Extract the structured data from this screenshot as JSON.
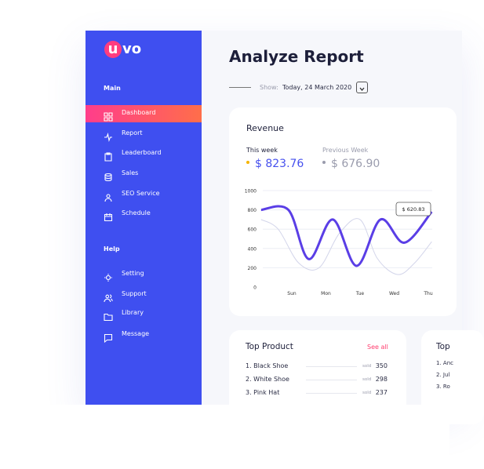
{
  "sidebar": {
    "logo_mark": "u",
    "logo_text": "vo",
    "sections": [
      {
        "title": "Main",
        "items": [
          {
            "label": "Dashboard",
            "active": true
          },
          {
            "label": "Report"
          },
          {
            "label": "Leaderboard"
          },
          {
            "label": "Sales"
          },
          {
            "label": "SEO Service"
          },
          {
            "label": "Schedule"
          }
        ]
      },
      {
        "title": "Help",
        "items": [
          {
            "label": "Setting"
          },
          {
            "label": "Support"
          },
          {
            "label": "Library"
          },
          {
            "label": "Message"
          }
        ]
      }
    ]
  },
  "header": {
    "title": "Analyze Report",
    "show_label": "Show:",
    "date": "Today, 24 March 2020"
  },
  "chart_data": {
    "type": "line",
    "title": "Revenue",
    "xlim": [
      0.1,
      5.1
    ],
    "xticks": [
      {
        "value": 1,
        "label": "Sun"
      },
      {
        "value": 2,
        "label": "Mon"
      },
      {
        "value": 3,
        "label": "Tue"
      },
      {
        "value": 4,
        "label": "Wed"
      },
      {
        "value": 5,
        "label": "Thu"
      }
    ],
    "ylim": [
      0,
      1000
    ],
    "yticks": [
      0,
      200,
      400,
      600,
      800,
      1000
    ],
    "grid": true,
    "series": [
      {
        "name": "Previous Week",
        "total": "$ 676.90",
        "color": "#d3d5ea",
        "dot_color": "#9a9cad",
        "x": [
          0.1,
          0.6,
          1.2,
          1.8,
          2.4,
          3.0,
          3.5,
          4.1,
          4.6,
          5.1
        ],
        "values": [
          700,
          600,
          250,
          200,
          560,
          700,
          300,
          130,
          250,
          470
        ]
      },
      {
        "name": "This week",
        "total": "$ 823.76",
        "color": "#5a3ee6",
        "dot_color": "#f5b400",
        "x": [
          0.1,
          0.9,
          1.5,
          2.2,
          2.9,
          3.6,
          4.3,
          5.1
        ],
        "values": [
          800,
          800,
          290,
          700,
          220,
          700,
          460,
          780
        ]
      }
    ],
    "annotation": "$ 620.83"
  },
  "products": {
    "title": "Top Product",
    "link": "See all",
    "rows": [
      {
        "name": "1. Black Shoe",
        "sold": "sold",
        "count": 350
      },
      {
        "name": "2. White Shoe",
        "sold": "sold",
        "count": 298
      },
      {
        "name": "3. Pink Hat",
        "sold": "sold",
        "count": 237
      }
    ]
  },
  "products2": {
    "title": "Top",
    "rows": [
      "1. Anc",
      "2. Jul",
      "3. Ro"
    ]
  }
}
